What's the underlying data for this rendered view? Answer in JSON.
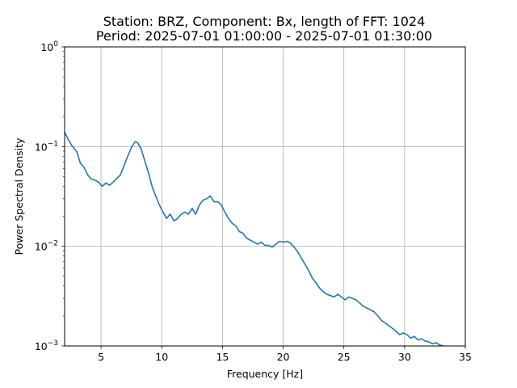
{
  "chart_data": {
    "type": "line",
    "title_line1": "Station: BRZ, Component: Bx, length of FFT: 1024",
    "title_line2": "Period: 2025-07-01 01:00:00 - 2025-07-01 01:30:00",
    "xlabel": "Frequency [Hz]",
    "ylabel": "Power Spectral Density",
    "xlim": [
      2,
      35
    ],
    "ylim": [
      0.001,
      1
    ],
    "yscale": "log",
    "grid": true,
    "line_color": "#1f77b4",
    "x_ticks": [
      {
        "value": 5,
        "label": "5"
      },
      {
        "value": 10,
        "label": "10"
      },
      {
        "value": 15,
        "label": "15"
      },
      {
        "value": 20,
        "label": "20"
      },
      {
        "value": 25,
        "label": "25"
      },
      {
        "value": 30,
        "label": "30"
      },
      {
        "value": 35,
        "label": "35"
      }
    ],
    "y_ticks": [
      {
        "value": 0.001,
        "base": "10",
        "exp": "−3"
      },
      {
        "value": 0.01,
        "base": "10",
        "exp": "−2"
      },
      {
        "value": 0.1,
        "base": "10",
        "exp": "−1"
      },
      {
        "value": 1,
        "base": "10",
        "exp": "0"
      }
    ],
    "series": [
      {
        "x": [
          2.0,
          2.3,
          2.6,
          3.0,
          3.3,
          3.6,
          3.9,
          4.2,
          4.5,
          4.8,
          5.1,
          5.4,
          5.7,
          6.0,
          6.3,
          6.6,
          6.9,
          7.2,
          7.5,
          7.8,
          8.0,
          8.3,
          8.6,
          8.9,
          9.2,
          9.5,
          9.8,
          10.1,
          10.4,
          10.7,
          11.0,
          11.3,
          11.6,
          11.9,
          12.2,
          12.5,
          12.8,
          13.1,
          13.4,
          13.7,
          14.0,
          14.3,
          14.6,
          14.9,
          15.2,
          15.5,
          15.8,
          16.1,
          16.4,
          16.7,
          17.0,
          17.3,
          17.6,
          17.9,
          18.2,
          18.5,
          18.8,
          19.1,
          19.4,
          19.7,
          20.0,
          20.3,
          20.6,
          20.9,
          21.2,
          21.5,
          21.8,
          22.1,
          22.4,
          22.7,
          23.0,
          23.3,
          23.6,
          23.9,
          24.2,
          24.5,
          24.8,
          25.1,
          25.4,
          25.7,
          26.0,
          26.3,
          26.6,
          26.9,
          27.2,
          27.5,
          27.8,
          28.1,
          28.4,
          28.7,
          29.0,
          29.3,
          29.6,
          29.9,
          30.2,
          30.5,
          30.8,
          31.1,
          31.4,
          31.7,
          32.0,
          32.3,
          32.6,
          32.9,
          33.2
        ],
        "y": [
          0.14,
          0.118,
          0.102,
          0.089,
          0.068,
          0.062,
          0.052,
          0.047,
          0.046,
          0.044,
          0.04,
          0.043,
          0.041,
          0.044,
          0.048,
          0.052,
          0.065,
          0.08,
          0.098,
          0.112,
          0.11,
          0.095,
          0.072,
          0.055,
          0.04,
          0.032,
          0.026,
          0.022,
          0.019,
          0.021,
          0.018,
          0.019,
          0.021,
          0.022,
          0.021,
          0.024,
          0.021,
          0.026,
          0.029,
          0.03,
          0.032,
          0.028,
          0.028,
          0.026,
          0.022,
          0.019,
          0.017,
          0.016,
          0.014,
          0.0135,
          0.012,
          0.0115,
          0.011,
          0.0105,
          0.011,
          0.0102,
          0.0102,
          0.0098,
          0.0105,
          0.0112,
          0.011,
          0.0112,
          0.0108,
          0.0098,
          0.0088,
          0.0076,
          0.0066,
          0.0057,
          0.0048,
          0.0043,
          0.0038,
          0.0035,
          0.0033,
          0.0032,
          0.0031,
          0.0033,
          0.0031,
          0.0029,
          0.0031,
          0.003,
          0.0029,
          0.0027,
          0.0025,
          0.0024,
          0.0023,
          0.0022,
          0.002,
          0.0018,
          0.0017,
          0.0016,
          0.0015,
          0.0014,
          0.0013,
          0.00135,
          0.0013,
          0.0012,
          0.00125,
          0.00115,
          0.00118,
          0.00112,
          0.0011,
          0.00105,
          0.00108,
          0.00102,
          0.001
        ]
      }
    ]
  }
}
